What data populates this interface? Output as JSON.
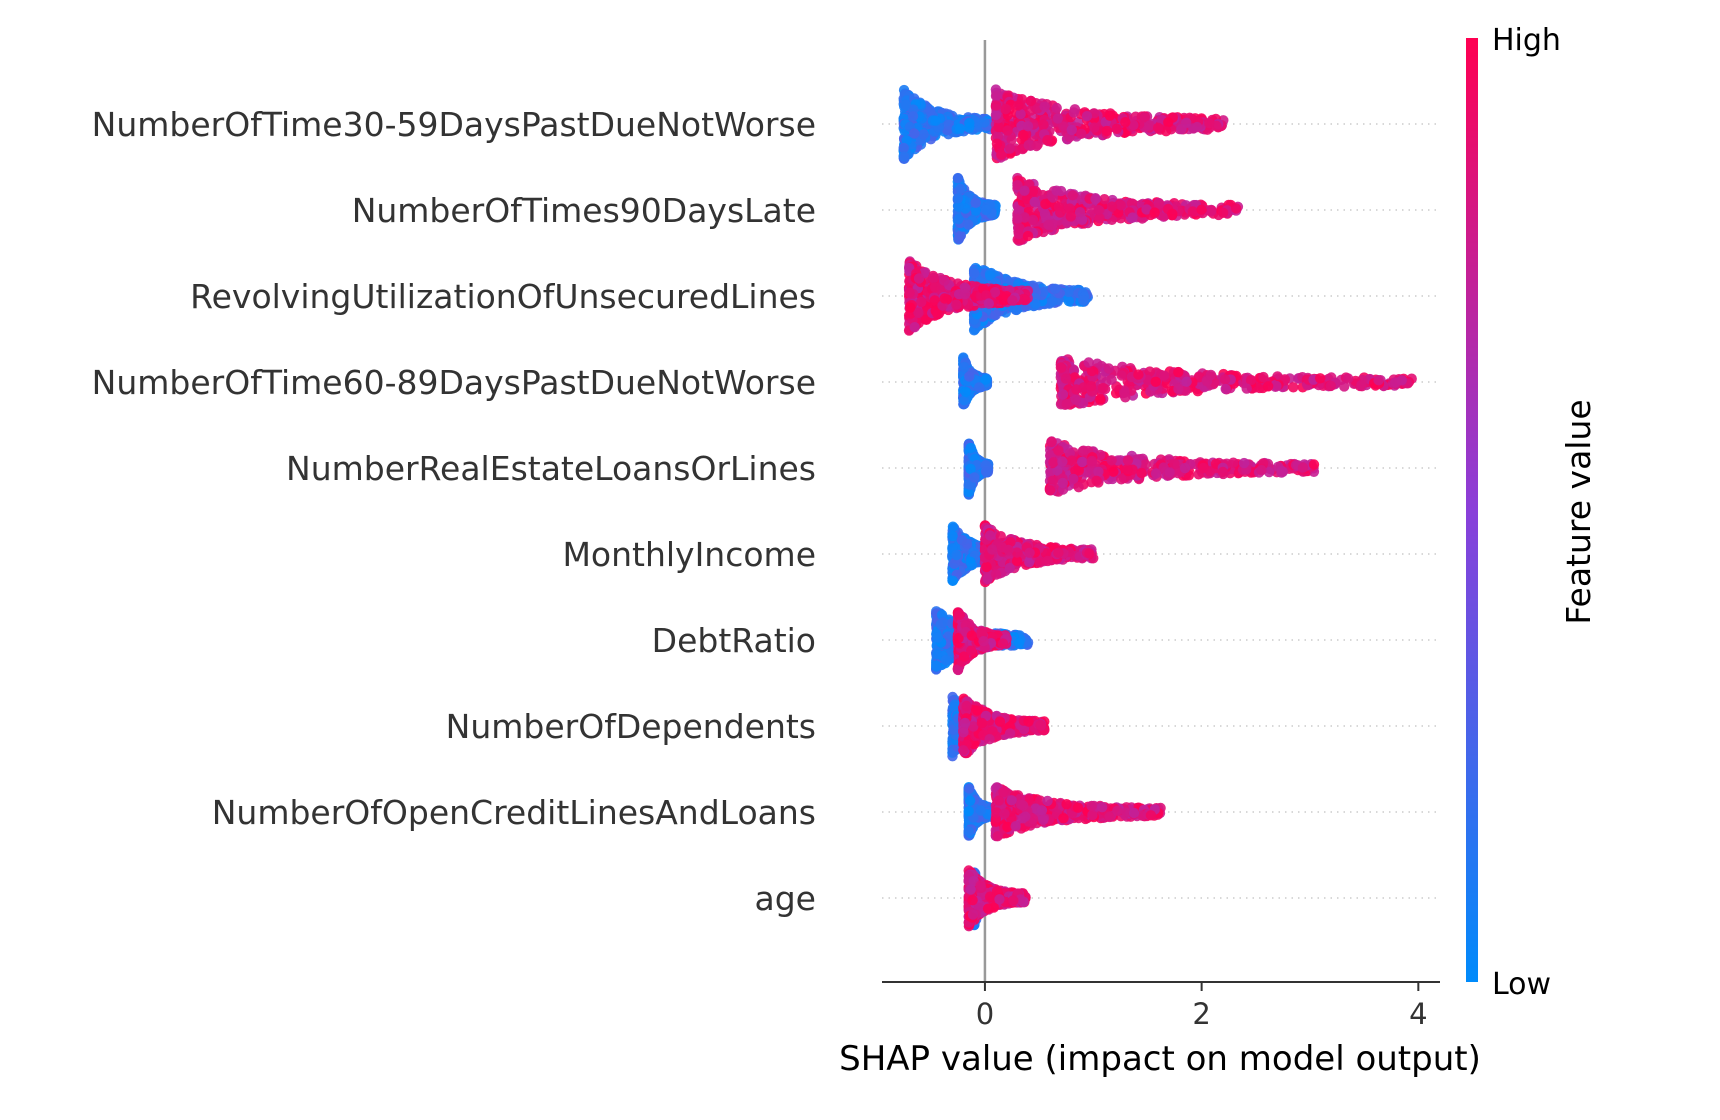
{
  "chart_data": {
    "type": "scatter",
    "subtype": "shap-beeswarm",
    "title": "",
    "xlabel": "SHAP value (impact on model output)",
    "xlim": [
      -0.95,
      4.2
    ],
    "x_ticks": [
      0,
      2,
      4
    ],
    "zero_line": 0,
    "colorbar": {
      "title": "Feature value",
      "high_label": "High",
      "low_label": "Low",
      "high_color": "#ff0052",
      "low_color": "#008bfb"
    },
    "features": [
      {
        "name": "NumberOfTime30-59DaysPastDueNotWorse",
        "low_range": [
          -0.75,
          0.05
        ],
        "high_range": [
          0.1,
          2.2
        ],
        "spread": 1.0
      },
      {
        "name": "NumberOfTimes90DaysLate",
        "low_range": [
          -0.25,
          0.1
        ],
        "high_range": [
          0.3,
          2.35
        ],
        "spread": 0.9
      },
      {
        "name": "RevolvingUtilizationOfUnsecuredLines",
        "low_range": [
          -0.1,
          0.95
        ],
        "high_range": [
          -0.7,
          0.4
        ],
        "spread": 1.0
      },
      {
        "name": "NumberOfTime60-89DaysPastDueNotWorse",
        "low_range": [
          -0.2,
          0.02
        ],
        "high_range": [
          0.7,
          3.95
        ],
        "spread": 0.7
      },
      {
        "name": "NumberRealEstateLoansOrLines",
        "low_range": [
          -0.15,
          0.03
        ],
        "high_range": [
          0.6,
          3.05
        ],
        "spread": 0.75
      },
      {
        "name": "MonthlyIncome",
        "low_range": [
          -0.3,
          0.2
        ],
        "high_range": [
          0.0,
          1.0
        ],
        "spread": 0.8
      },
      {
        "name": "DebtRatio",
        "low_range": [
          -0.45,
          0.4
        ],
        "high_range": [
          -0.25,
          0.2
        ],
        "spread": 0.85
      },
      {
        "name": "NumberOfDependents",
        "low_range": [
          -0.3,
          0.15
        ],
        "high_range": [
          -0.2,
          0.55
        ],
        "spread": 0.85
      },
      {
        "name": "NumberOfOpenCreditLinesAndLoans",
        "low_range": [
          -0.15,
          0.1
        ],
        "high_range": [
          0.1,
          1.65
        ],
        "spread": 0.7
      },
      {
        "name": "age",
        "low_range": [
          -0.1,
          0.08
        ],
        "high_range": [
          -0.15,
          0.38
        ],
        "spread": 0.8
      }
    ]
  }
}
